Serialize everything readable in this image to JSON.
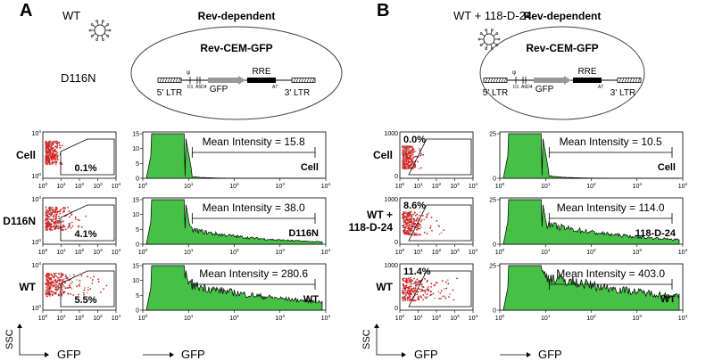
{
  "panels": [
    {
      "letter": "A",
      "virus_labels": [
        "WT",
        "D116N"
      ],
      "diagram": {
        "title": "Rev-dependent",
        "cell": "Rev-CEM-GFP",
        "ltr5": "5' LTR",
        "gene": "GFP",
        "rre": "RRE",
        "ltr3": "3' LTR",
        "psi": "ψ",
        "d1": "D1",
        "a5d4": "A5D4",
        "a7": "A7"
      },
      "rows": [
        {
          "name": [
            "Cell"
          ],
          "dot_percent": "0.1%",
          "mean_label": "Mean Intensity = 15.8",
          "hist_label": "Cell"
        },
        {
          "name": [
            "D116N"
          ],
          "dot_percent": "4.1%",
          "mean_label": "Mean Intensity = 38.0",
          "hist_label": "D116N"
        },
        {
          "name": [
            "WT"
          ],
          "dot_percent": "5.5%",
          "mean_label": "Mean Intensity = 280.6",
          "hist_label": "WT"
        }
      ],
      "dot_yticks": [
        {
          "base": "10",
          "exp": "0"
        },
        {
          "base": "10",
          "exp": "4"
        }
      ],
      "hist_yticks": [
        "0",
        "5",
        "10",
        "15"
      ],
      "dot_ylabel": "SSC",
      "dot_xlabel": "GFP",
      "hist_xlabel": "GFP"
    },
    {
      "letter": "B",
      "virus_labels": [
        "WT + 118-D-24"
      ],
      "diagram": {
        "title": "Rev-dependent",
        "cell": "Rev-CEM-GFP",
        "ltr5": "5' LTR",
        "gene": "GFP",
        "rre": "RRE",
        "ltr3": "3' LTR",
        "psi": "ψ",
        "d1": "D1",
        "a5d4": "A5D4",
        "a7": "A7"
      },
      "rows": [
        {
          "name": [
            "Cell"
          ],
          "dot_percent": "0.0%",
          "mean_label": "Mean Intensity = 10.5",
          "hist_label": "Cell"
        },
        {
          "name": [
            "WT +",
            "118-D-24"
          ],
          "dot_percent": "8.6%",
          "mean_label": "Mean Intensity = 114.0",
          "hist_label": "118-D-24"
        },
        {
          "name": [
            "WT"
          ],
          "dot_percent": "11.4%",
          "mean_label": "Mean Intensity = 403.0",
          "hist_label": "WT"
        }
      ],
      "dot_yticks": [
        {
          "base": "0",
          "exp": ""
        },
        {
          "base": "1000",
          "exp": ""
        }
      ],
      "hist_yticks": [
        "0",
        "25"
      ],
      "dot_ylabel": "SSC",
      "dot_xlabel": "GFP",
      "hist_xlabel": "GFP"
    }
  ],
  "xticks": [
    {
      "base": "10",
      "exp": "0"
    },
    {
      "base": "10",
      "exp": "1"
    },
    {
      "base": "10",
      "exp": "2"
    },
    {
      "base": "10",
      "exp": "3"
    },
    {
      "base": "10",
      "exp": "4"
    }
  ]
}
